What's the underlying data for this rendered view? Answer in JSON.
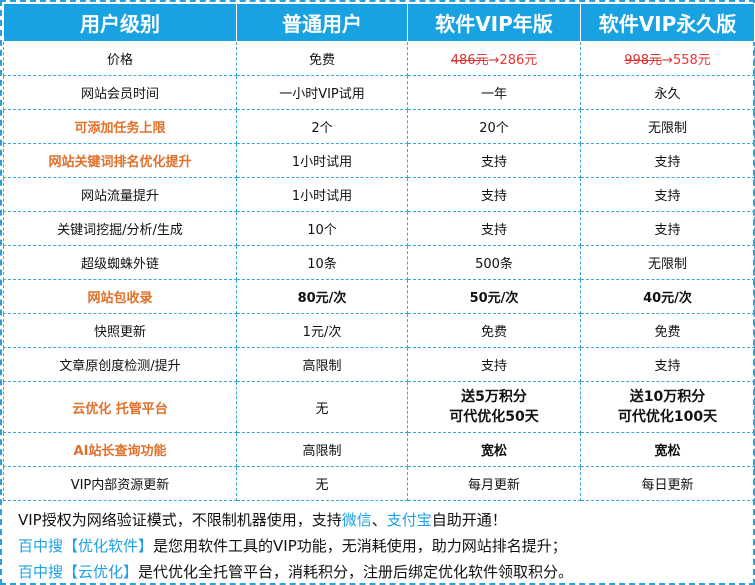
{
  "header": {
    "level": "用户级别",
    "standard": "普通用户",
    "vip_year": "软件VIP年版",
    "vip_permanent": "软件VIP永久版"
  },
  "price_row": {
    "label": "价格",
    "standard": "免费",
    "year_old": "486元",
    "year_arrow": "→",
    "year_new": "286元",
    "perm_old": "998元",
    "perm_arrow": "→",
    "perm_new": "558元"
  },
  "rows": [
    {
      "label": "网站会员时间",
      "standard": "一小时VIP试用",
      "year": "一年",
      "perm": "永久"
    },
    {
      "label": "可添加任务上限",
      "standard": "2个",
      "year": "20个",
      "perm": "无限制"
    },
    {
      "label": "网站关键词排名优化提升",
      "standard": "1小时试用",
      "year": "支持",
      "perm": "支持"
    },
    {
      "label": "网站流量提升",
      "standard": "1小时试用",
      "year": "支持",
      "perm": "支持"
    },
    {
      "label": "关键词挖掘/分析/生成",
      "standard": "10个",
      "year": "支持",
      "perm": "支持"
    },
    {
      "label": "超级蜘蛛外链",
      "standard": "10条",
      "year": "500条",
      "perm": "无限制"
    },
    {
      "label": "网站包收录",
      "standard": "80元/次",
      "year": "50元/次",
      "perm": "40元/次"
    },
    {
      "label": "快照更新",
      "standard": "1元/次",
      "year": "免费",
      "perm": "免费"
    },
    {
      "label": "文章原创度检测/提升",
      "standard": "高限制",
      "year": "支持",
      "perm": "支持"
    },
    {
      "label": "云优化 托管平台",
      "standard": "无",
      "year_line1": "送5万积分",
      "year_line2": "可代优化50天",
      "perm_line1": "送10万积分",
      "perm_line2": "可代优化100天"
    },
    {
      "label": "AI站长查询功能",
      "standard": "高限制",
      "year": "宽松",
      "perm": "宽松"
    },
    {
      "label": "VIP内部资源更新",
      "standard": "无",
      "year": "每月更新",
      "perm": "每日更新"
    }
  ],
  "notes": {
    "line1_a": "VIP授权为网络验证模式，不限制机器使用，支持",
    "line1_wechat": "微信",
    "line1_sep": "、",
    "line1_alipay": "支付宝",
    "line1_b": "自助开通！",
    "line2_link": "百中搜【优化软件】",
    "line2_text": "是您用软件工具的VIP功能，无消耗使用，助力网站排名提升；",
    "line3_link": "百中搜【云优化】",
    "line3_text": "是代优化全托管平台，消耗积分，注册后绑定优化软件领取积分。"
  },
  "colors": {
    "header_bg": "#18a2e1",
    "label_orange": "#ec8a3f",
    "vip_red": "#e33333",
    "link_blue": "#1ea1e6"
  }
}
